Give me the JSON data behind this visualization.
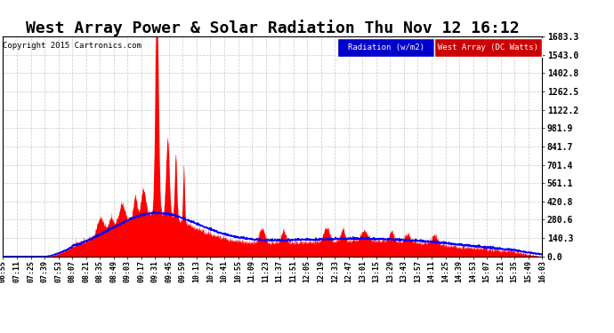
{
  "title": "West Array Power & Solar Radiation Thu Nov 12 16:12",
  "copyright": "Copyright 2015 Cartronics.com",
  "legend_radiation": "Radiation (w/m2)",
  "legend_west": "West Array (DC Watts)",
  "legend_radiation_bg": "#0000cc",
  "legend_west_bg": "#cc0000",
  "ymax": 1683.3,
  "ymin": 0.0,
  "yticks": [
    0.0,
    140.3,
    280.6,
    420.8,
    561.1,
    701.4,
    841.7,
    981.9,
    1122.2,
    1262.5,
    1402.8,
    1543.0,
    1683.3
  ],
  "background_color": "#ffffff",
  "plot_bg": "#ffffff",
  "grid_color": "#bbbbbb",
  "title_fontsize": 13,
  "radiation_color": "#0000ff",
  "west_color": "#ff0000",
  "x_time_labels": [
    "06:55",
    "07:11",
    "07:25",
    "07:39",
    "07:53",
    "08:07",
    "08:21",
    "08:35",
    "08:49",
    "09:03",
    "09:17",
    "09:31",
    "09:45",
    "09:59",
    "10:13",
    "10:27",
    "10:41",
    "10:55",
    "11:09",
    "11:23",
    "11:37",
    "11:51",
    "12:05",
    "12:19",
    "12:33",
    "12:47",
    "13:01",
    "13:15",
    "13:29",
    "13:43",
    "13:57",
    "14:11",
    "14:25",
    "14:39",
    "14:53",
    "15:07",
    "15:21",
    "15:35",
    "15:49",
    "16:03"
  ]
}
